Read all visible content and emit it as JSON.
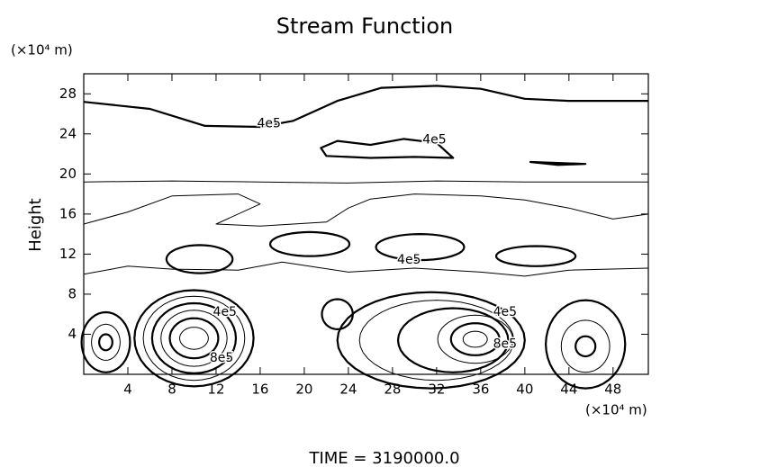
{
  "chart_data": {
    "type": "contour",
    "title": "Stream Function",
    "x_unit": "(×10⁴ m)",
    "y_unit": "(×10⁴ m)",
    "y_label": "Height",
    "footer": "TIME = 3190000.0",
    "xlim": [
      0,
      51.2
    ],
    "ylim": [
      0,
      30
    ],
    "xticks": [
      4,
      8,
      12,
      16,
      20,
      24,
      28,
      32,
      36,
      40,
      44,
      48
    ],
    "yticks": [
      4,
      8,
      12,
      16,
      20,
      24,
      28
    ],
    "levels": [
      {
        "value": 400000,
        "label": "4e5"
      },
      {
        "value": 800000,
        "label": "8e5"
      }
    ],
    "color": "#000000"
  }
}
